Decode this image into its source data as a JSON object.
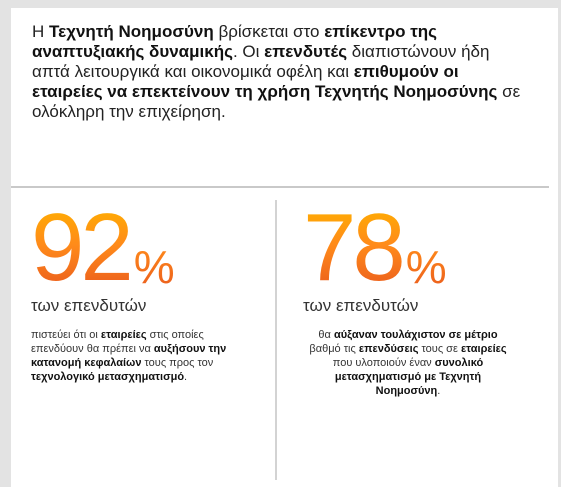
{
  "intro": {
    "segments": [
      {
        "text": "Η ",
        "bold": false
      },
      {
        "text": "Τεχνητή Νοημοσύνη",
        "bold": true
      },
      {
        "text": " βρίσκεται στο ",
        "bold": false
      },
      {
        "text": "επίκεντρο της αναπτυξιακής δυναμικής",
        "bold": true
      },
      {
        "text": ". Οι ",
        "bold": false
      },
      {
        "text": "επενδυτές",
        "bold": true
      },
      {
        "text": " διαπιστώνουν ήδη απτά λειτουργικά και οικονομικά οφέλη και ",
        "bold": false
      },
      {
        "text": "επιθυμούν οι εταιρείες να επεκτείνουν τη χρήση Τεχνητής Νοημοσύνης",
        "bold": true
      },
      {
        "text": " σε ολόκληρη την επιχείρηση.",
        "bold": false
      }
    ]
  },
  "stats": [
    {
      "value": "92",
      "unit": "%",
      "label": "των επενδυτών",
      "description": [
        {
          "text": "πιστεύει ότι οι ",
          "bold": false
        },
        {
          "text": "εταιρείες",
          "bold": true
        },
        {
          "text": " στις οποίες επενδύουν θα πρέπει να ",
          "bold": false
        },
        {
          "text": "αυξήσουν την κατανομή κεφαλαίων",
          "bold": true
        },
        {
          "text": " τους προς τον ",
          "bold": false
        },
        {
          "text": "τεχνολογικό μετασχηματισμό",
          "bold": true
        },
        {
          "text": ".",
          "bold": false
        }
      ]
    },
    {
      "value": "78",
      "unit": "%",
      "label": "των επενδυτών",
      "description": [
        {
          "text": "θα ",
          "bold": false
        },
        {
          "text": "αύξαναν τουλάχιστον σε μέτριο",
          "bold": true
        },
        {
          "text": " βαθμό τις ",
          "bold": false
        },
        {
          "text": "επενδύσεις",
          "bold": true
        },
        {
          "text": " τους σε ",
          "bold": false
        },
        {
          "text": "εταιρείες",
          "bold": true
        },
        {
          "text": " που υλοποιούν έναν ",
          "bold": false
        },
        {
          "text": "συνολικό μετασχηματισμό με Τεχνητή Νοημοσύνη",
          "bold": true
        },
        {
          "text": ".",
          "bold": false
        }
      ]
    }
  ],
  "colors": {
    "accent_start": "#ffb000",
    "accent_end": "#e8571e",
    "text": "#222222",
    "divider": "#c9c9c9"
  }
}
